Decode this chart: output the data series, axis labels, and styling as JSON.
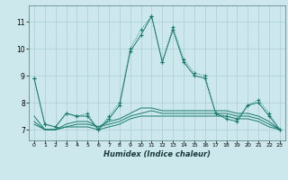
{
  "xlabel": "Humidex (Indice chaleur)",
  "ylabel": "",
  "background_color": "#cce8ec",
  "grid_color": "#aacdd4",
  "line_color": "#1a7a6e",
  "xlim": [
    -0.5,
    23.5
  ],
  "ylim": [
    6.6,
    11.6
  ],
  "yticks": [
    7,
    8,
    9,
    10,
    11
  ],
  "xticks": [
    0,
    1,
    2,
    3,
    4,
    5,
    6,
    7,
    8,
    9,
    10,
    11,
    12,
    13,
    14,
    15,
    16,
    17,
    18,
    19,
    20,
    21,
    22,
    23
  ],
  "series": [
    {
      "x": [
        0,
        1,
        2,
        3,
        4,
        5,
        6,
        7,
        8,
        9,
        10,
        11,
        12,
        13,
        14,
        15,
        16,
        17,
        18,
        19,
        20,
        21,
        22,
        23
      ],
      "y": [
        8.9,
        7.2,
        7.1,
        7.6,
        7.5,
        7.6,
        7.0,
        7.5,
        8.0,
        10.0,
        10.7,
        11.2,
        9.5,
        10.8,
        9.6,
        9.1,
        9.0,
        7.6,
        7.5,
        7.4,
        7.9,
        8.1,
        7.6,
        7.0
      ],
      "style": "dotted",
      "marker": "+"
    },
    {
      "x": [
        0,
        1,
        2,
        3,
        4,
        5,
        6,
        7,
        8,
        9,
        10,
        11,
        12,
        13,
        14,
        15,
        16,
        17,
        18,
        19,
        20,
        21,
        22,
        23
      ],
      "y": [
        8.9,
        7.2,
        7.1,
        7.6,
        7.5,
        7.5,
        7.0,
        7.4,
        7.9,
        9.9,
        10.5,
        11.2,
        9.5,
        10.7,
        9.5,
        9.0,
        8.9,
        7.6,
        7.4,
        7.3,
        7.9,
        8.0,
        7.5,
        7.0
      ],
      "style": "solid",
      "marker": "+"
    },
    {
      "x": [
        0,
        1,
        2,
        3,
        4,
        5,
        6,
        7,
        8,
        9,
        10,
        11,
        12,
        13,
        14,
        15,
        16,
        17,
        18,
        19,
        20,
        21,
        22,
        23
      ],
      "y": [
        7.2,
        7.0,
        7.0,
        7.1,
        7.1,
        7.1,
        7.0,
        7.1,
        7.2,
        7.4,
        7.5,
        7.5,
        7.5,
        7.5,
        7.5,
        7.5,
        7.5,
        7.5,
        7.5,
        7.4,
        7.4,
        7.3,
        7.1,
        7.0
      ],
      "style": "solid",
      "marker": null
    },
    {
      "x": [
        0,
        1,
        2,
        3,
        4,
        5,
        6,
        7,
        8,
        9,
        10,
        11,
        12,
        13,
        14,
        15,
        16,
        17,
        18,
        19,
        20,
        21,
        22,
        23
      ],
      "y": [
        7.3,
        7.0,
        7.0,
        7.1,
        7.2,
        7.2,
        7.1,
        7.2,
        7.3,
        7.5,
        7.6,
        7.7,
        7.6,
        7.6,
        7.6,
        7.6,
        7.6,
        7.6,
        7.6,
        7.5,
        7.5,
        7.4,
        7.2,
        7.0
      ],
      "style": "solid",
      "marker": null
    },
    {
      "x": [
        0,
        1,
        2,
        3,
        4,
        5,
        6,
        7,
        8,
        9,
        10,
        11,
        12,
        13,
        14,
        15,
        16,
        17,
        18,
        19,
        20,
        21,
        22,
        23
      ],
      "y": [
        7.5,
        7.0,
        7.0,
        7.2,
        7.3,
        7.3,
        7.1,
        7.3,
        7.4,
        7.6,
        7.8,
        7.8,
        7.7,
        7.7,
        7.7,
        7.7,
        7.7,
        7.7,
        7.7,
        7.6,
        7.6,
        7.5,
        7.3,
        7.0
      ],
      "style": "solid",
      "marker": null
    }
  ]
}
